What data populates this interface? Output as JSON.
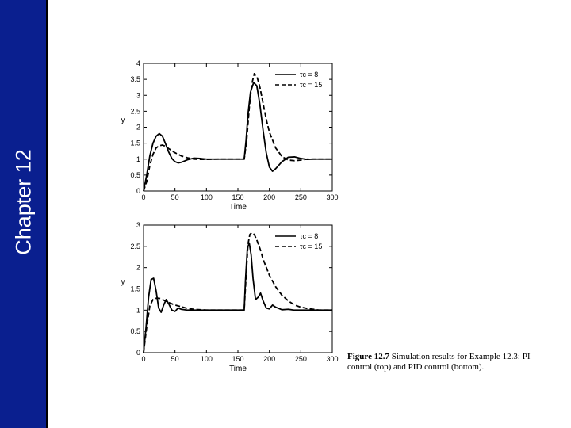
{
  "sidebar": {
    "label": "Chapter 12",
    "color": "#0a1f8f"
  },
  "caption": {
    "figure_label": "Figure 12.7",
    "text": "Simulation results for Example 12.3: PI control (top) and PID control (bottom)."
  },
  "chart_data": [
    {
      "type": "line",
      "xlabel": "Time",
      "ylabel": "y",
      "xlim": [
        0,
        300
      ],
      "ylim": [
        0,
        4
      ],
      "xticks": [
        0,
        50,
        100,
        150,
        200,
        250,
        300
      ],
      "yticks": [
        0,
        0.5,
        1,
        1.5,
        2,
        2.5,
        3,
        3.5,
        4
      ],
      "legend": "top-right",
      "grid": false,
      "series": [
        {
          "name": "τc = 8",
          "style": "solid",
          "x": [
            0,
            5,
            10,
            15,
            20,
            25,
            30,
            35,
            40,
            45,
            50,
            55,
            60,
            70,
            80,
            90,
            100,
            120,
            140,
            160,
            163,
            166,
            170,
            175,
            180,
            185,
            190,
            195,
            200,
            205,
            210,
            220,
            230,
            240,
            250,
            260,
            270,
            300
          ],
          "y": [
            0,
            0.5,
            1.1,
            1.5,
            1.72,
            1.8,
            1.72,
            1.48,
            1.22,
            1.02,
            0.92,
            0.88,
            0.9,
            0.98,
            1.03,
            1.02,
            1.0,
            1.0,
            1.0,
            1.0,
            1.6,
            2.4,
            3.1,
            3.4,
            3.3,
            2.7,
            1.9,
            1.2,
            0.75,
            0.62,
            0.7,
            0.92,
            1.06,
            1.07,
            1.02,
            0.99,
            1.0,
            1.0
          ]
        },
        {
          "name": "τc = 15",
          "style": "dashed",
          "x": [
            0,
            5,
            10,
            15,
            20,
            25,
            30,
            35,
            40,
            50,
            60,
            70,
            80,
            90,
            100,
            120,
            140,
            160,
            164,
            168,
            172,
            176,
            180,
            185,
            190,
            195,
            200,
            210,
            220,
            230,
            240,
            250,
            260,
            270,
            300
          ],
          "y": [
            0,
            0.3,
            0.8,
            1.15,
            1.35,
            1.42,
            1.44,
            1.4,
            1.33,
            1.2,
            1.1,
            1.04,
            1.0,
            0.99,
            0.99,
            1.0,
            1.0,
            1.0,
            1.6,
            2.6,
            3.35,
            3.68,
            3.6,
            3.25,
            2.75,
            2.25,
            1.85,
            1.35,
            1.08,
            0.97,
            0.95,
            0.97,
            1.0,
            1.0,
            1.0
          ]
        }
      ]
    },
    {
      "type": "line",
      "xlabel": "Time",
      "ylabel": "y",
      "xlim": [
        0,
        300
      ],
      "ylim": [
        0,
        3
      ],
      "xticks": [
        0,
        50,
        100,
        150,
        200,
        250,
        300
      ],
      "yticks": [
        0,
        0.5,
        1,
        1.5,
        2,
        2.5,
        3
      ],
      "legend": "top-right",
      "grid": false,
      "series": [
        {
          "name": "τc = 8",
          "style": "solid",
          "x": [
            0,
            4,
            8,
            12,
            16,
            20,
            24,
            28,
            32,
            36,
            40,
            45,
            50,
            55,
            60,
            70,
            80,
            90,
            100,
            120,
            140,
            160,
            162,
            165,
            168,
            171,
            174,
            178,
            182,
            186,
            190,
            195,
            200,
            205,
            210,
            220,
            230,
            240,
            250,
            260,
            300
          ],
          "y": [
            0,
            0.6,
            1.3,
            1.72,
            1.75,
            1.45,
            1.05,
            0.95,
            1.12,
            1.25,
            1.15,
            1.0,
            0.97,
            1.05,
            1.02,
            1.0,
            1.0,
            1.0,
            1.0,
            1.0,
            1.0,
            1.0,
            1.7,
            2.45,
            2.58,
            2.3,
            1.75,
            1.25,
            1.3,
            1.4,
            1.22,
            1.05,
            1.03,
            1.12,
            1.07,
            1.01,
            1.02,
            1.0,
            1.0,
            1.0,
            1.0
          ]
        },
        {
          "name": "τc = 15",
          "style": "dashed",
          "x": [
            0,
            5,
            10,
            15,
            20,
            25,
            30,
            40,
            50,
            60,
            70,
            80,
            90,
            100,
            120,
            140,
            160,
            163,
            166,
            169,
            172,
            176,
            180,
            185,
            190,
            200,
            210,
            220,
            230,
            240,
            250,
            260,
            270,
            280,
            300
          ],
          "y": [
            0,
            0.6,
            1.1,
            1.25,
            1.28,
            1.28,
            1.25,
            1.18,
            1.12,
            1.08,
            1.04,
            1.02,
            1.01,
            1.0,
            1.0,
            1.0,
            1.0,
            1.8,
            2.55,
            2.78,
            2.82,
            2.78,
            2.65,
            2.45,
            2.2,
            1.82,
            1.55,
            1.35,
            1.22,
            1.12,
            1.07,
            1.04,
            1.02,
            1.0,
            1.0
          ]
        }
      ]
    }
  ]
}
